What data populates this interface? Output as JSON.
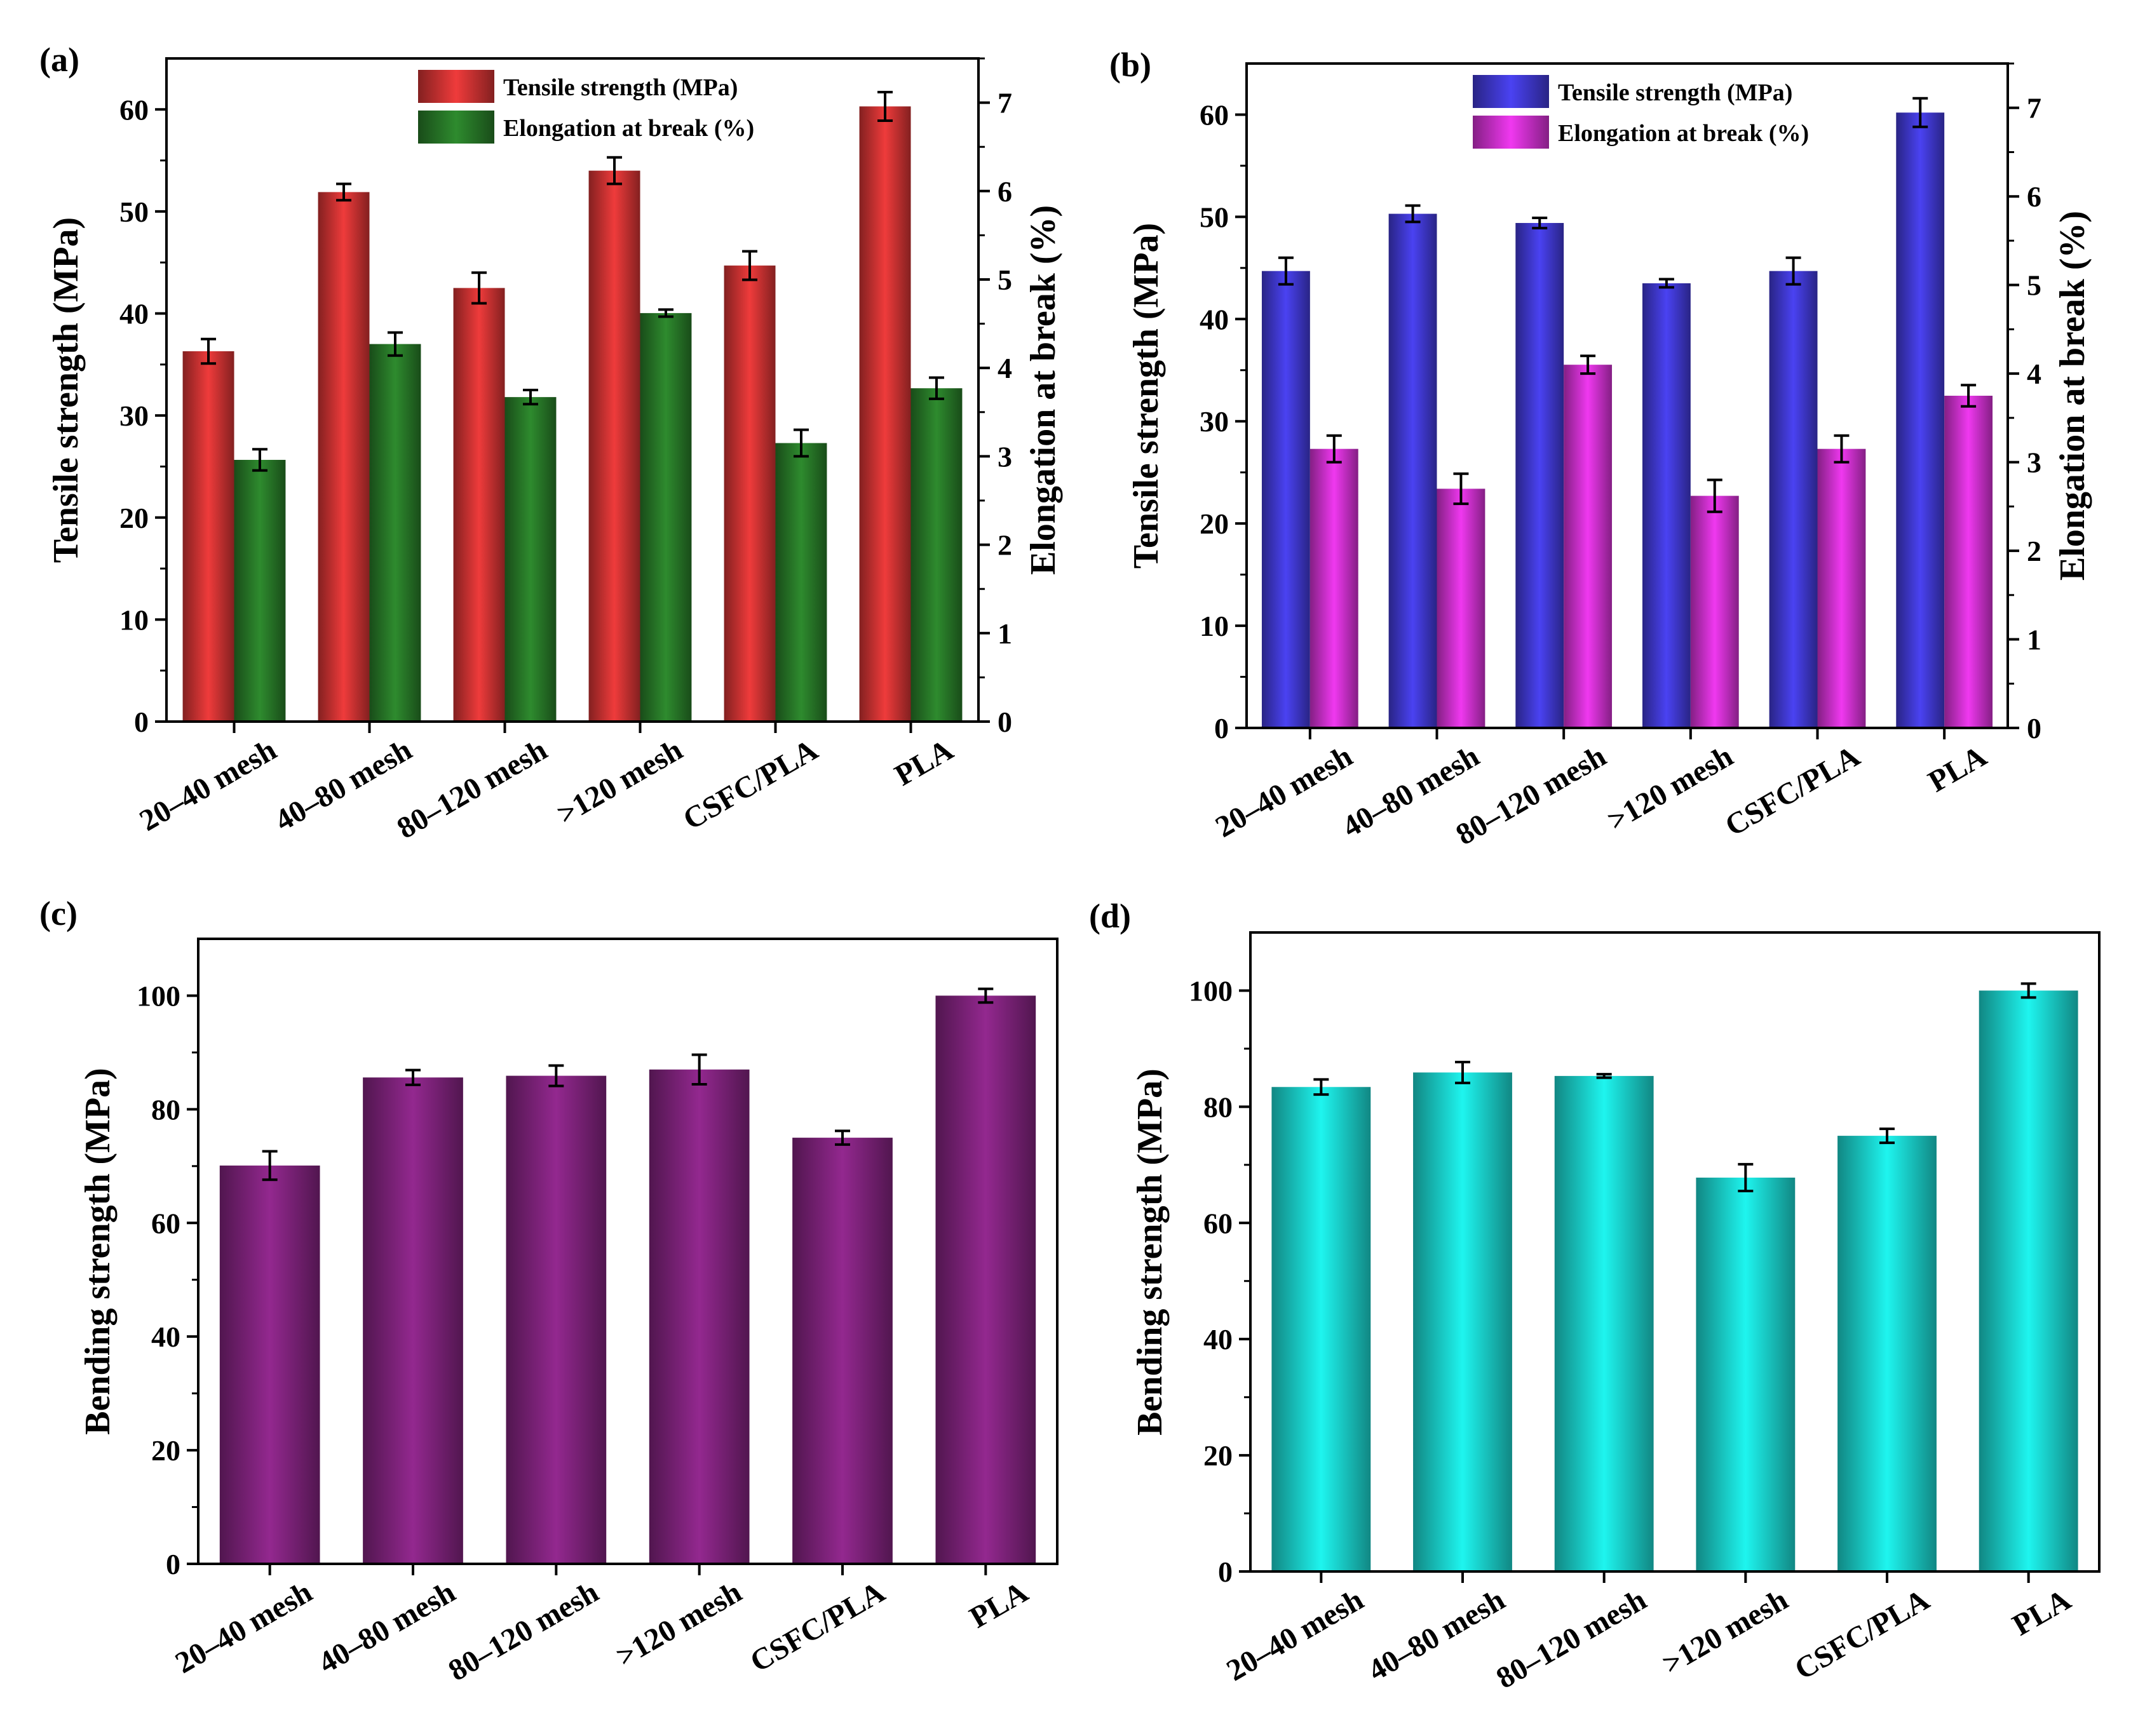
{
  "chart_data": [
    {
      "panel": "(a)",
      "type": "bar",
      "categories": [
        "20–40 mesh",
        "40–80 mesh",
        "80–120 mesh",
        ">120 mesh",
        "CSFC/PLA",
        "PLA"
      ],
      "series": [
        {
          "name": "Tensile strength (MPa)",
          "axis": "left",
          "color": "#ef3b3b",
          "values": [
            36.3,
            51.9,
            42.5,
            54.0,
            44.7,
            60.3
          ],
          "errors": [
            1.2,
            0.8,
            1.5,
            1.3,
            1.4,
            1.4
          ]
        },
        {
          "name": "Elongation at break (%)",
          "axis": "right",
          "color": "#2e8b2e",
          "values": [
            2.96,
            4.27,
            3.67,
            4.62,
            3.15,
            3.77
          ],
          "errors": [
            0.12,
            0.13,
            0.08,
            0.04,
            0.15,
            0.12
          ]
        }
      ],
      "ylabel": "Tensile strength (MPa)",
      "ylabel_right": "Elongation at break (%)",
      "ylim": [
        0,
        65
      ],
      "ylim_right": [
        0,
        7.5
      ],
      "yticks": [
        "0",
        "10",
        "20",
        "30",
        "40",
        "50",
        "60"
      ],
      "yticks_right": [
        "0",
        "1",
        "2",
        "3",
        "4",
        "5",
        "6",
        "7"
      ],
      "legend": "top-right"
    },
    {
      "panel": "(b)",
      "type": "bar",
      "categories": [
        "20–40 mesh",
        "40–80 mesh",
        "80–120 mesh",
        ">120 mesh",
        "CSFC/PLA",
        "PLA"
      ],
      "series": [
        {
          "name": "Tensile strength (MPa)",
          "axis": "left",
          "color": "#4a42f2",
          "values": [
            44.7,
            50.3,
            49.4,
            43.5,
            44.7,
            60.2
          ],
          "errors": [
            1.3,
            0.8,
            0.5,
            0.4,
            1.3,
            1.4
          ]
        },
        {
          "name": "Elongation at break (%)",
          "axis": "right",
          "color": "#f038f0",
          "values": [
            3.15,
            2.7,
            4.1,
            2.62,
            3.15,
            3.75
          ],
          "errors": [
            0.15,
            0.17,
            0.1,
            0.18,
            0.15,
            0.12
          ]
        }
      ],
      "ylabel": "Tensile strength (MPa)",
      "ylabel_right": "Elongation at break (%)",
      "ylim": [
        0,
        65
      ],
      "ylim_right": [
        0,
        7.5
      ],
      "yticks": [
        "0",
        "10",
        "20",
        "30",
        "40",
        "50",
        "60"
      ],
      "yticks_right": [
        "0",
        "1",
        "2",
        "3",
        "4",
        "5",
        "6",
        "7"
      ],
      "legend": "top-right"
    },
    {
      "panel": "(c)",
      "type": "bar",
      "categories": [
        "20–40 mesh",
        "40–80 mesh",
        "80–120 mesh",
        ">120 mesh",
        "CSFC/PLA",
        "PLA"
      ],
      "series": [
        {
          "name": "Bending strength (MPa)",
          "axis": "left",
          "color": "#93288f",
          "values": [
            70.1,
            85.6,
            85.9,
            87.0,
            75.0,
            100.0
          ],
          "errors": [
            2.5,
            1.3,
            1.8,
            2.6,
            1.2,
            1.2
          ]
        }
      ],
      "ylabel": "Bending strength (MPa)",
      "ylim": [
        0,
        110
      ],
      "yticks": [
        "0",
        "20",
        "40",
        "60",
        "80",
        "100"
      ]
    },
    {
      "panel": "(d)",
      "type": "bar",
      "categories": [
        "20–40 mesh",
        "40–80 mesh",
        "80–120 mesh",
        ">120 mesh",
        "CSFC/PLA",
        "PLA"
      ],
      "series": [
        {
          "name": "Bending strength (MPa)",
          "axis": "left",
          "color": "#1ef5ef",
          "values": [
            83.4,
            85.9,
            85.3,
            67.8,
            75.0,
            100.0
          ],
          "errors": [
            1.3,
            1.8,
            0.3,
            2.3,
            1.2,
            1.2
          ]
        }
      ],
      "ylabel": "Bending strength (MPa)",
      "ylim": [
        0,
        110
      ],
      "yticks": [
        "0",
        "20",
        "40",
        "60",
        "80",
        "100"
      ]
    }
  ]
}
